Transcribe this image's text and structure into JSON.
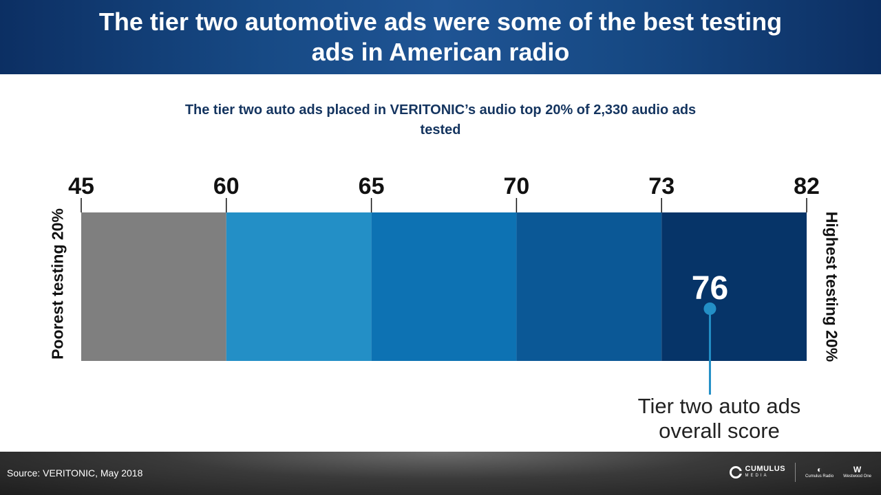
{
  "header": {
    "title": "The tier two automotive ads were some of the best testing ads in American radio"
  },
  "chart_data": {
    "type": "bar",
    "title": "The tier two auto ads placed in VERITONIC’s audio top 20% of 2,330 audio ads tested",
    "ticks": [
      45,
      60,
      65,
      70,
      73,
      82
    ],
    "segments": [
      {
        "from": 45,
        "to": 60,
        "color": "#7f7f7f"
      },
      {
        "from": 60,
        "to": 65,
        "color": "#238fc6"
      },
      {
        "from": 65,
        "to": 70,
        "color": "#0d72b3"
      },
      {
        "from": 70,
        "to": 73,
        "color": "#0b5896"
      },
      {
        "from": 73,
        "to": 82,
        "color": "#063468"
      }
    ],
    "marker": {
      "value": 76,
      "label": "76",
      "color": "#238fc6"
    },
    "left_label": "Poorest testing 20%",
    "right_label": "Highest testing 20%",
    "annotation": "Tier two auto ads overall score"
  },
  "footer": {
    "source": "Source: VERITONIC, May 2018",
    "logos": {
      "cumulus_main": "CUMULUS",
      "cumulus_sub": "MEDIA",
      "radio": "Cumulus Radio",
      "westwood": "Westwood One"
    }
  }
}
